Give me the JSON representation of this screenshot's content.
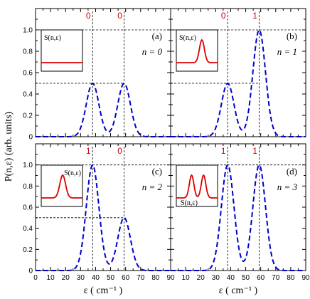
{
  "chart_data": {
    "type": "line",
    "ylabel": "P(n,ε)  (arb. units)",
    "xlabel": "ε ( cm⁻¹ )",
    "xlim": [
      0,
      90
    ],
    "ylim": [
      0,
      1.2
    ],
    "x_ticks": [
      "0",
      "10",
      "20",
      "30",
      "40",
      "50",
      "60",
      "70",
      "80",
      "90"
    ],
    "y_ticks": [
      "0",
      "0.2",
      "0.4",
      "0.6",
      "0.8",
      "1.0"
    ],
    "curve_color": "#0000cc",
    "inset_color": "#dd0000",
    "marker_color": "#cc0000",
    "reference_lines": {
      "x": [
        38,
        59
      ],
      "y": [
        1.0
      ]
    },
    "inset_label": "S(n,ε)",
    "panels": [
      {
        "letter": "(a)",
        "n_label": "n = 0",
        "markers": [
          {
            "x": 38,
            "text": "0"
          },
          {
            "x": 59,
            "text": "0"
          }
        ],
        "peaks": [
          {
            "center": 38,
            "height": 0.5
          },
          {
            "center": 59,
            "height": 0.5
          }
        ],
        "half_line": 0.5,
        "inset_shape": "flat"
      },
      {
        "letter": "(b)",
        "n_label": "n = 1",
        "markers": [
          {
            "x": 38,
            "text": "0"
          },
          {
            "x": 59,
            "text": "1"
          }
        ],
        "peaks": [
          {
            "center": 38,
            "height": 0.5
          },
          {
            "center": 59,
            "height": 1.0
          }
        ],
        "half_line": 0.5,
        "inset_shape": "right-peak"
      },
      {
        "letter": "(c)",
        "n_label": "n = 2",
        "markers": [
          {
            "x": 38,
            "text": "1"
          },
          {
            "x": 59,
            "text": "0"
          }
        ],
        "peaks": [
          {
            "center": 38,
            "height": 1.0
          },
          {
            "center": 59,
            "height": 0.5
          }
        ],
        "half_line": 0.5,
        "inset_shape": "left-peak"
      },
      {
        "letter": "(d)",
        "n_label": "n = 3",
        "markers": [
          {
            "x": 38,
            "text": "1"
          },
          {
            "x": 59,
            "text": "1"
          }
        ],
        "peaks": [
          {
            "center": 38,
            "height": 1.0
          },
          {
            "center": 59,
            "height": 1.0
          }
        ],
        "half_line": null,
        "inset_shape": "double-peak"
      }
    ]
  }
}
